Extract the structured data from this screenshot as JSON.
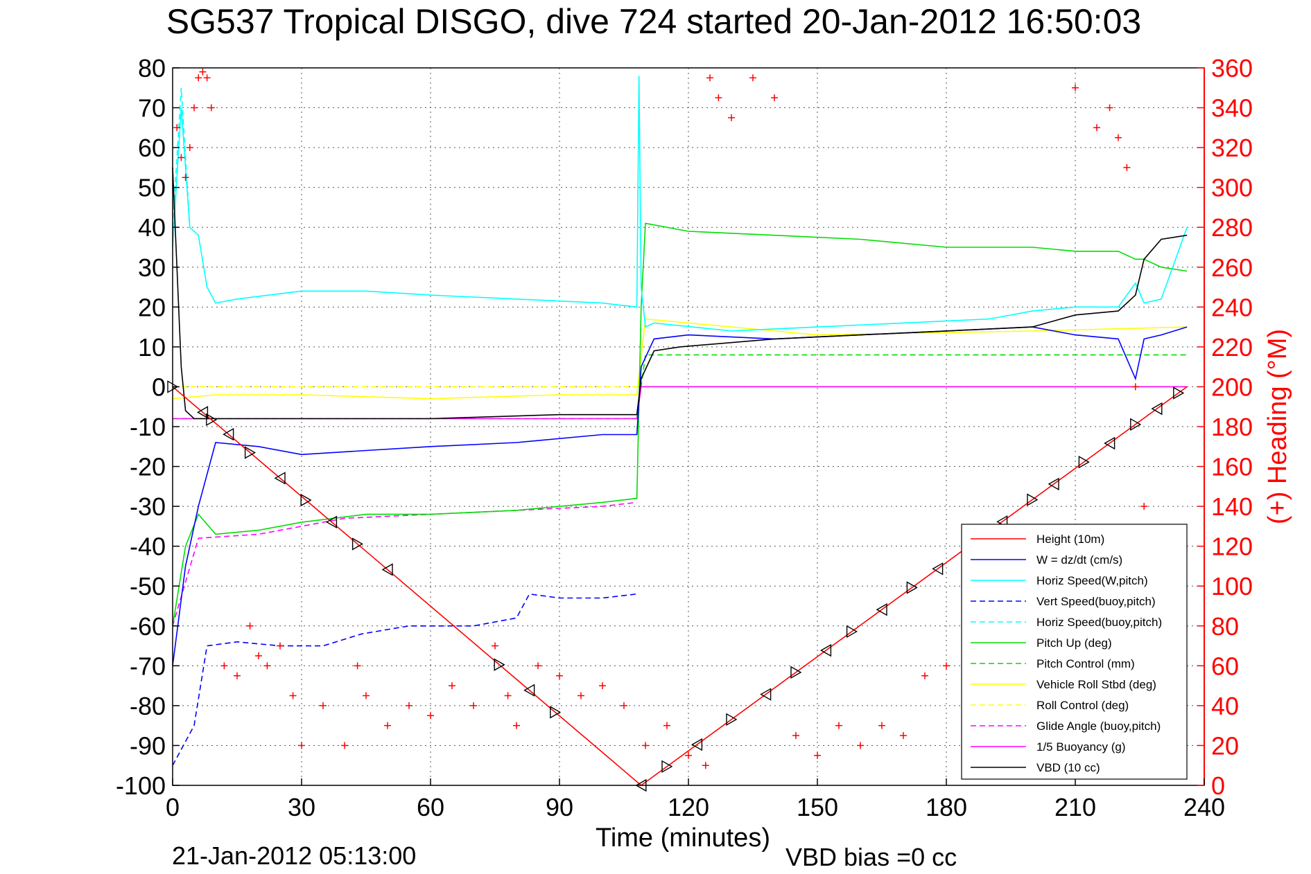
{
  "chart_data": {
    "type": "line",
    "title": "SG537 Tropical DISGO, dive 724 started 20-Jan-2012 16:50:03",
    "xlabel": "Time (minutes)",
    "ylabel_right": "(+) Heading (°M)",
    "xlim": [
      0,
      240
    ],
    "ylim_left": [
      -100,
      80
    ],
    "ylim_right": [
      0,
      360
    ],
    "xticks": [
      "0",
      "30",
      "60",
      "90",
      "120",
      "150",
      "180",
      "210",
      "240"
    ],
    "yticks_left": [
      "80",
      "70",
      "60",
      "50",
      "40",
      "30",
      "20",
      "10",
      "0",
      "-10",
      "-20",
      "-30",
      "-40",
      "-50",
      "-60",
      "-70",
      "-80",
      "-90",
      "-100"
    ],
    "yticks_right": [
      "360",
      "340",
      "320",
      "300",
      "280",
      "260",
      "240",
      "220",
      "200",
      "180",
      "160",
      "140",
      "120",
      "100",
      "80",
      "60",
      "40",
      "20",
      "0"
    ],
    "grid": true,
    "legend_position": "bottom-right",
    "footer_left": "21-Jan-2012 05:13:00",
    "footer_right": "VBD bias =0 cc",
    "series": [
      {
        "name": "Height (10m)",
        "color": "#ff0000",
        "dash": false,
        "x": [
          0,
          109,
          236
        ],
        "y": [
          0,
          -100,
          0
        ]
      },
      {
        "name": "W = dz/dt (cm/s)",
        "color": "#0000ff",
        "dash": false,
        "x": [
          0,
          3,
          6,
          10,
          20,
          30,
          45,
          60,
          80,
          100,
          108,
          109,
          112,
          120,
          140,
          160,
          180,
          200,
          210,
          220,
          224,
          226,
          230,
          236
        ],
        "y": [
          -70,
          -45,
          -30,
          -14,
          -15,
          -17,
          -16,
          -15,
          -14,
          -12,
          -12,
          5,
          12,
          13,
          12,
          13,
          14,
          15,
          13,
          12,
          2,
          12,
          13,
          15
        ]
      },
      {
        "name": "Horiz Speed(W,pitch)",
        "color": "#00ffff",
        "dash": false,
        "x": [
          0,
          2,
          4,
          6,
          8,
          10,
          15,
          30,
          45,
          60,
          80,
          100,
          108,
          108.5,
          109,
          110,
          112,
          130,
          150,
          170,
          190,
          200,
          210,
          220,
          224,
          226,
          230,
          236
        ],
        "y": [
          35,
          70,
          40,
          38,
          25,
          21,
          22,
          24,
          24,
          23,
          22,
          21,
          20,
          78,
          25,
          15,
          16,
          14,
          15,
          16,
          17,
          19,
          20,
          20,
          26,
          21,
          22,
          40
        ]
      },
      {
        "name": "Vert Speed(buoy,pitch)",
        "color": "#0000ff",
        "dash": true,
        "x": [
          0,
          5,
          8,
          15,
          25,
          35,
          44,
          55,
          70,
          80,
          83,
          90,
          100,
          108
        ],
        "y": [
          -95,
          -85,
          -65,
          -64,
          -65,
          -65,
          -62,
          -60,
          -60,
          -58,
          -52,
          -53,
          -53,
          -52
        ]
      },
      {
        "name": "Horiz Speed(buoy,pitch)",
        "color": "#00ffff",
        "dash": true,
        "x": [
          0,
          2,
          4
        ],
        "y": [
          40,
          75,
          40
        ]
      },
      {
        "name": "Pitch Up (deg)",
        "color": "#00dd00",
        "dash": false,
        "x": [
          0,
          3,
          6,
          10,
          20,
          30,
          45,
          60,
          80,
          100,
          108,
          109,
          110,
          120,
          140,
          160,
          180,
          200,
          210,
          220,
          224,
          226,
          230,
          236
        ],
        "y": [
          -60,
          -40,
          -32,
          -37,
          -36,
          -34,
          -32,
          -32,
          -31,
          -29,
          -28,
          20,
          41,
          39,
          38,
          37,
          35,
          35,
          34,
          34,
          32,
          32,
          30,
          29
        ]
      },
      {
        "name": "Pitch Control (mm)",
        "color": "#00dd00",
        "dash": true,
        "x": [
          0,
          3,
          6,
          108,
          109,
          110,
          236
        ],
        "y": [
          -8,
          -8,
          -8,
          -8,
          0,
          8,
          8
        ]
      },
      {
        "name": "Vehicle Roll Stbd (deg)",
        "color": "#ffff00",
        "dash": false,
        "x": [
          0,
          10,
          30,
          60,
          90,
          108,
          110,
          150,
          200,
          236
        ],
        "y": [
          -3,
          -2,
          -2,
          -3,
          -2,
          -2,
          17,
          13,
          14,
          15
        ]
      },
      {
        "name": "Roll Control (deg)",
        "color": "#ffff00",
        "dash": true,
        "x": [
          0,
          236
        ],
        "y": [
          0,
          0
        ]
      },
      {
        "name": "Glide Angle (buoy,pitch)",
        "color": "#ff00ff",
        "dash": true,
        "x": [
          0,
          6,
          20,
          40,
          60,
          80,
          100,
          108
        ],
        "y": [
          -60,
          -38,
          -37,
          -33,
          -32,
          -31,
          -30,
          -29
        ]
      },
      {
        "name": "1/5 Buoyancy (g)",
        "color": "#ff00ff",
        "dash": false,
        "x": [
          0,
          108,
          109,
          236
        ],
        "y": [
          -8,
          -8,
          0,
          0
        ]
      },
      {
        "name": "VBD (10 cc)",
        "color": "#000000",
        "dash": false,
        "x": [
          0,
          1,
          2,
          3,
          5,
          30,
          60,
          90,
          108,
          109,
          112,
          118,
          140,
          160,
          180,
          200,
          210,
          220,
          224,
          226,
          230,
          236
        ],
        "y": [
          55,
          30,
          5,
          -6,
          -8,
          -8,
          -8,
          -7,
          -7,
          2,
          9,
          10,
          12,
          13,
          14,
          15,
          18,
          19,
          23,
          32,
          37,
          38
        ]
      }
    ],
    "heading_points": {
      "name": "Heading",
      "axis": "right",
      "color": "#ff0000",
      "marker": "+",
      "x": [
        1,
        2,
        3,
        4,
        5,
        6,
        7,
        8,
        9,
        12,
        15,
        18,
        20,
        22,
        25,
        28,
        30,
        35,
        40,
        43,
        45,
        50,
        55,
        60,
        65,
        70,
        75,
        78,
        80,
        85,
        90,
        95,
        100,
        105,
        110,
        115,
        120,
        124,
        125,
        127,
        130,
        135,
        140,
        145,
        150,
        155,
        160,
        165,
        170,
        175,
        180,
        185,
        190,
        200,
        210,
        215,
        218,
        220,
        222,
        224,
        226,
        228,
        230
      ],
      "y": [
        330,
        315,
        305,
        320,
        340,
        355,
        358,
        355,
        340,
        60,
        55,
        80,
        65,
        60,
        70,
        45,
        20,
        40,
        20,
        60,
        45,
        30,
        40,
        35,
        50,
        40,
        70,
        45,
        30,
        60,
        55,
        45,
        50,
        40,
        20,
        30,
        15,
        10,
        355,
        345,
        335,
        355,
        345,
        25,
        15,
        30,
        20,
        30,
        25,
        55,
        60,
        35,
        20,
        15,
        350,
        330,
        340,
        325,
        310,
        200,
        140,
        120,
        100
      ]
    },
    "triangle_markers": {
      "color": "#000000",
      "x": [
        0,
        7,
        9,
        13,
        18,
        25,
        31,
        37,
        43,
        50,
        76,
        83,
        89,
        109,
        115,
        122,
        130,
        138,
        145,
        152,
        158,
        165,
        172,
        178,
        185,
        193,
        200,
        205,
        212,
        218,
        224,
        229,
        234
      ]
    }
  }
}
